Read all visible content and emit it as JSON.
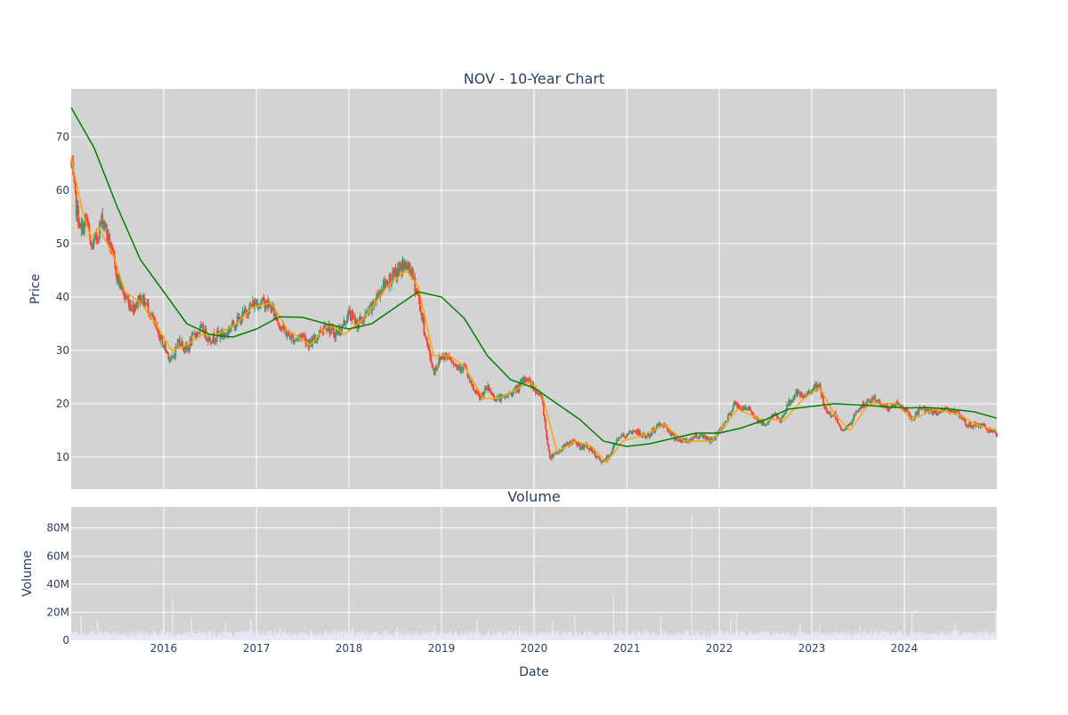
{
  "chart_data": [
    {
      "type": "candlestick",
      "title": "NOV - 10-Year Chart",
      "xlabel": "",
      "ylabel": "Price",
      "xlim": [
        "2015-01-01",
        "2024-12-31"
      ],
      "ylim": [
        4,
        79
      ],
      "yticks": [
        10,
        20,
        30,
        40,
        50,
        60,
        70
      ],
      "grid": true,
      "background": "#d3d3d3",
      "colors": {
        "up": "#3d9970",
        "down": "#ff4136",
        "ma_short": "#ffa500",
        "ma_long": "#008000"
      },
      "price_path": [
        [
          "2015-01-01",
          65
        ],
        [
          "2015-01-20",
          57
        ],
        [
          "2015-02-10",
          52
        ],
        [
          "2015-03-01",
          55
        ],
        [
          "2015-03-20",
          49
        ],
        [
          "2015-04-10",
          51
        ],
        [
          "2015-05-05",
          55
        ],
        [
          "2015-06-01",
          50
        ],
        [
          "2015-07-01",
          44
        ],
        [
          "2015-08-01",
          40
        ],
        [
          "2015-09-01",
          38
        ],
        [
          "2015-10-01",
          40
        ],
        [
          "2015-11-01",
          38
        ],
        [
          "2015-12-01",
          34
        ],
        [
          "2016-01-10",
          30
        ],
        [
          "2016-02-01",
          28
        ],
        [
          "2016-03-01",
          32
        ],
        [
          "2016-04-01",
          30
        ],
        [
          "2016-05-01",
          33
        ],
        [
          "2016-06-01",
          34
        ],
        [
          "2016-07-01",
          32
        ],
        [
          "2016-08-01",
          33
        ],
        [
          "2016-09-01",
          33
        ],
        [
          "2016-10-01",
          35
        ],
        [
          "2016-11-01",
          36
        ],
        [
          "2016-12-01",
          38
        ],
        [
          "2017-01-01",
          39
        ],
        [
          "2017-02-01",
          39
        ],
        [
          "2017-03-01",
          38
        ],
        [
          "2017-04-01",
          35
        ],
        [
          "2017-05-01",
          33
        ],
        [
          "2017-06-01",
          32
        ],
        [
          "2017-07-01",
          33
        ],
        [
          "2017-08-01",
          31
        ],
        [
          "2017-09-01",
          33
        ],
        [
          "2017-10-01",
          35
        ],
        [
          "2017-11-01",
          33
        ],
        [
          "2017-12-01",
          34
        ],
        [
          "2018-01-01",
          37
        ],
        [
          "2018-02-01",
          35
        ],
        [
          "2018-03-01",
          36
        ],
        [
          "2018-04-01",
          38
        ],
        [
          "2018-05-01",
          41
        ],
        [
          "2018-06-01",
          43
        ],
        [
          "2018-07-01",
          44
        ],
        [
          "2018-08-01",
          46
        ],
        [
          "2018-09-01",
          45
        ],
        [
          "2018-10-01",
          40
        ],
        [
          "2018-11-01",
          32
        ],
        [
          "2018-12-01",
          26
        ],
        [
          "2019-01-01",
          29
        ],
        [
          "2019-02-01",
          29
        ],
        [
          "2019-03-01",
          27
        ],
        [
          "2019-04-01",
          27
        ],
        [
          "2019-05-01",
          23
        ],
        [
          "2019-06-01",
          21
        ],
        [
          "2019-07-01",
          23
        ],
        [
          "2019-08-01",
          21
        ],
        [
          "2019-09-01",
          21
        ],
        [
          "2019-10-01",
          22
        ],
        [
          "2019-11-01",
          23
        ],
        [
          "2019-12-01",
          25
        ],
        [
          "2020-01-01",
          23
        ],
        [
          "2020-02-01",
          21
        ],
        [
          "2020-03-01",
          10
        ],
        [
          "2020-04-01",
          11
        ],
        [
          "2020-05-01",
          12
        ],
        [
          "2020-06-01",
          13
        ],
        [
          "2020-07-01",
          12
        ],
        [
          "2020-08-01",
          12
        ],
        [
          "2020-09-01",
          10
        ],
        [
          "2020-10-01",
          9
        ],
        [
          "2020-11-01",
          11
        ],
        [
          "2020-12-01",
          14
        ],
        [
          "2021-01-01",
          14
        ],
        [
          "2021-02-01",
          15
        ],
        [
          "2021-03-01",
          14
        ],
        [
          "2021-04-01",
          14
        ],
        [
          "2021-05-01",
          16
        ],
        [
          "2021-06-01",
          16
        ],
        [
          "2021-07-01",
          14
        ],
        [
          "2021-08-01",
          13
        ],
        [
          "2021-09-01",
          13
        ],
        [
          "2021-10-01",
          14
        ],
        [
          "2021-11-01",
          14
        ],
        [
          "2021-12-01",
          13
        ],
        [
          "2022-01-01",
          15
        ],
        [
          "2022-02-01",
          17
        ],
        [
          "2022-03-01",
          20
        ],
        [
          "2022-04-01",
          19
        ],
        [
          "2022-05-01",
          19
        ],
        [
          "2022-06-01",
          17
        ],
        [
          "2022-07-01",
          16
        ],
        [
          "2022-08-01",
          18
        ],
        [
          "2022-09-01",
          17
        ],
        [
          "2022-10-01",
          20
        ],
        [
          "2022-11-01",
          22
        ],
        [
          "2022-12-01",
          21
        ],
        [
          "2023-01-01",
          23
        ],
        [
          "2023-02-01",
          23
        ],
        [
          "2023-03-01",
          18
        ],
        [
          "2023-04-01",
          18
        ],
        [
          "2023-05-01",
          15
        ],
        [
          "2023-06-01",
          16
        ],
        [
          "2023-07-01",
          19
        ],
        [
          "2023-08-01",
          20
        ],
        [
          "2023-09-01",
          21
        ],
        [
          "2023-10-01",
          20
        ],
        [
          "2023-11-01",
          19
        ],
        [
          "2023-12-01",
          20
        ],
        [
          "2024-01-01",
          19
        ],
        [
          "2024-02-01",
          17
        ],
        [
          "2024-03-01",
          19
        ],
        [
          "2024-04-01",
          19
        ],
        [
          "2024-05-01",
          18
        ],
        [
          "2024-06-01",
          19
        ],
        [
          "2024-07-01",
          19
        ],
        [
          "2024-08-01",
          18
        ],
        [
          "2024-09-01",
          16
        ],
        [
          "2024-10-01",
          16
        ],
        [
          "2024-11-01",
          16
        ],
        [
          "2024-12-31",
          14
        ]
      ],
      "ma_short": [
        [
          "2015-01-01",
          66
        ],
        [
          "2015-02-15",
          56
        ],
        [
          "2015-03-20",
          51
        ],
        [
          "2015-04-20",
          53
        ],
        [
          "2015-06-15",
          48
        ],
        [
          "2015-08-01",
          41
        ],
        [
          "2015-10-01",
          39
        ],
        [
          "2015-12-01",
          35
        ],
        [
          "2016-02-01",
          30
        ],
        [
          "2016-04-01",
          31
        ],
        [
          "2016-06-01",
          33
        ],
        [
          "2016-08-01",
          33
        ],
        [
          "2016-10-15",
          35
        ],
        [
          "2016-12-15",
          38
        ],
        [
          "2017-03-01",
          39
        ],
        [
          "2017-05-01",
          34
        ],
        [
          "2017-08-01",
          31
        ],
        [
          "2017-10-15",
          35
        ],
        [
          "2017-12-15",
          33
        ],
        [
          "2018-03-01",
          36
        ],
        [
          "2018-06-01",
          42
        ],
        [
          "2018-08-15",
          45
        ],
        [
          "2018-10-01",
          42
        ],
        [
          "2018-12-01",
          29
        ],
        [
          "2019-02-01",
          29
        ],
        [
          "2019-04-01",
          27
        ],
        [
          "2019-06-15",
          21
        ],
        [
          "2019-08-15",
          21
        ],
        [
          "2019-12-15",
          24
        ],
        [
          "2020-02-01",
          22
        ],
        [
          "2020-04-01",
          11
        ],
        [
          "2020-06-15",
          13
        ],
        [
          "2020-08-15",
          12
        ],
        [
          "2020-10-15",
          9
        ],
        [
          "2020-12-15",
          13
        ],
        [
          "2021-03-01",
          14
        ],
        [
          "2021-06-01",
          16
        ],
        [
          "2021-08-15",
          13
        ],
        [
          "2021-12-01",
          13
        ],
        [
          "2022-03-15",
          19
        ],
        [
          "2022-06-15",
          17
        ],
        [
          "2022-09-15",
          17
        ],
        [
          "2022-12-01",
          21
        ],
        [
          "2023-02-01",
          23
        ],
        [
          "2023-04-01",
          18
        ],
        [
          "2023-06-01",
          15
        ],
        [
          "2023-08-15",
          20
        ],
        [
          "2023-12-01",
          20
        ],
        [
          "2024-02-01",
          17
        ],
        [
          "2024-05-01",
          19
        ],
        [
          "2024-08-01",
          18
        ],
        [
          "2024-10-15",
          16
        ],
        [
          "2024-12-31",
          15
        ]
      ],
      "ma_long": [
        [
          "2015-01-01",
          75.5
        ],
        [
          "2015-04-01",
          68
        ],
        [
          "2015-07-01",
          57
        ],
        [
          "2015-10-01",
          47
        ],
        [
          "2016-01-01",
          41
        ],
        [
          "2016-04-01",
          35
        ],
        [
          "2016-07-01",
          33
        ],
        [
          "2016-10-01",
          32.5
        ],
        [
          "2017-01-01",
          34
        ],
        [
          "2017-04-01",
          36.3
        ],
        [
          "2017-07-01",
          36.2
        ],
        [
          "2017-10-01",
          35
        ],
        [
          "2018-01-01",
          34
        ],
        [
          "2018-04-01",
          35
        ],
        [
          "2018-07-01",
          38
        ],
        [
          "2018-10-01",
          41
        ],
        [
          "2019-01-01",
          40
        ],
        [
          "2019-04-01",
          36
        ],
        [
          "2019-07-01",
          29
        ],
        [
          "2019-10-01",
          24.5
        ],
        [
          "2020-01-01",
          23
        ],
        [
          "2020-04-01",
          20
        ],
        [
          "2020-07-01",
          17
        ],
        [
          "2020-10-01",
          13
        ],
        [
          "2021-01-01",
          12
        ],
        [
          "2021-04-01",
          12.5
        ],
        [
          "2021-07-01",
          13.5
        ],
        [
          "2021-10-01",
          14.5
        ],
        [
          "2022-01-01",
          14.5
        ],
        [
          "2022-04-01",
          15.5
        ],
        [
          "2022-07-01",
          17
        ],
        [
          "2022-10-01",
          19
        ],
        [
          "2023-01-01",
          19.5
        ],
        [
          "2023-04-01",
          20
        ],
        [
          "2023-07-01",
          19.8
        ],
        [
          "2023-10-01",
          19.5
        ],
        [
          "2024-01-01",
          19.2
        ],
        [
          "2024-04-01",
          19.3
        ],
        [
          "2024-07-01",
          19
        ],
        [
          "2024-10-01",
          18.5
        ],
        [
          "2024-12-31",
          17.3
        ]
      ]
    },
    {
      "type": "bar",
      "title": "Volume",
      "xlabel": "Date",
      "ylabel": "Volume",
      "xlim": [
        "2015-01-01",
        "2024-12-31"
      ],
      "ylim": [
        0,
        95000000
      ],
      "yticks": [
        0,
        20000000,
        40000000,
        60000000,
        80000000
      ],
      "ytick_labels": [
        "0",
        "20M",
        "40M",
        "60M",
        "80M"
      ],
      "xtick_labels": [
        "2016",
        "2017",
        "2018",
        "2019",
        "2020",
        "2021",
        "2022",
        "2023",
        "2024"
      ],
      "grid": true,
      "background": "#d3d3d3",
      "bar_color": "#e8e8f6",
      "baseline_volume": 5000000,
      "spikes": [
        [
          "2015-02-10",
          17000000
        ],
        [
          "2015-04-15",
          14000000
        ],
        [
          "2016-02-05",
          29000000
        ],
        [
          "2016-04-20",
          16000000
        ],
        [
          "2016-09-01",
          12000000
        ],
        [
          "2016-12-10",
          15000000
        ],
        [
          "2017-04-05",
          9000000
        ],
        [
          "2018-01-15",
          9000000
        ],
        [
          "2018-07-10",
          10000000
        ],
        [
          "2018-12-05",
          11000000
        ],
        [
          "2019-05-20",
          15000000
        ],
        [
          "2019-11-05",
          10000000
        ],
        [
          "2020-03-15",
          14000000
        ],
        [
          "2020-06-10",
          18000000
        ],
        [
          "2020-11-10",
          33000000
        ],
        [
          "2021-05-15",
          17000000
        ],
        [
          "2021-09-15",
          90000000
        ],
        [
          "2022-02-15",
          16000000
        ],
        [
          "2022-03-10",
          20000000
        ],
        [
          "2022-11-15",
          12000000
        ],
        [
          "2023-02-01",
          11000000
        ],
        [
          "2023-07-10",
          10000000
        ],
        [
          "2024-01-31",
          21000000
        ],
        [
          "2024-07-20",
          12000000
        ],
        [
          "2024-12-28",
          22000000
        ]
      ]
    }
  ]
}
